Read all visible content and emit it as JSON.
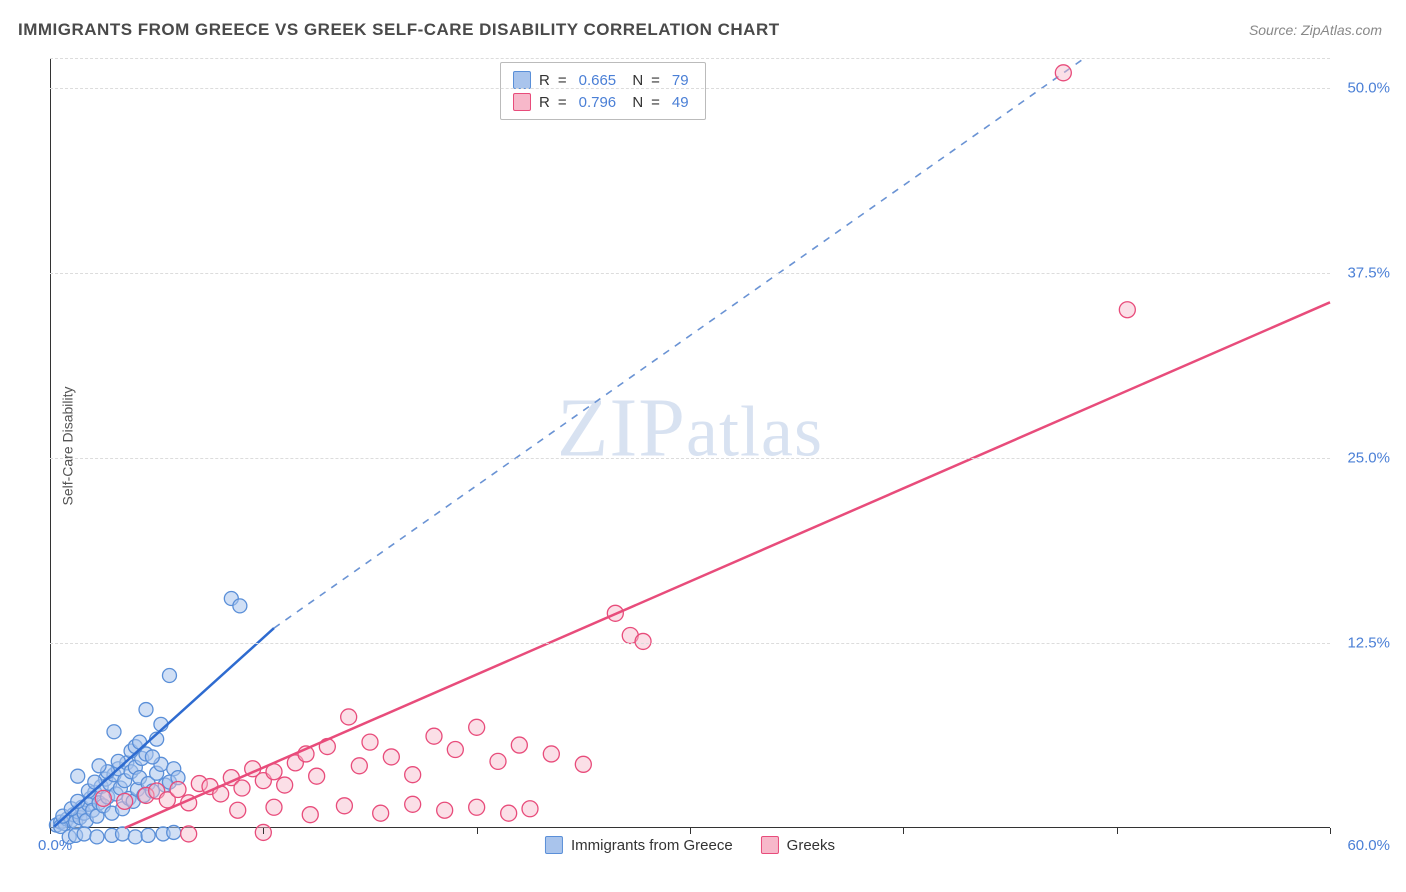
{
  "title": "IMMIGRANTS FROM GREECE VS GREEK SELF-CARE DISABILITY CORRELATION CHART",
  "source": "Source: ZipAtlas.com",
  "ylabel": "Self-Care Disability",
  "watermark": "ZIPatlas",
  "chart": {
    "type": "scatter",
    "background_color": "#ffffff",
    "grid_color": "#dcdcdc",
    "axis_color": "#333333",
    "tick_label_color": "#4a7fd6",
    "xlim": [
      0,
      60
    ],
    "ylim": [
      0,
      52
    ],
    "xtick_positions": [
      0,
      10,
      20,
      30,
      40,
      50,
      60
    ],
    "ytick_values": [
      12.5,
      25.0,
      37.5,
      50.0
    ],
    "ytick_labels": [
      "12.5%",
      "25.0%",
      "37.5%",
      "50.0%"
    ],
    "x_origin_label": "0.0%",
    "x_max_label": "60.0%",
    "series": [
      {
        "id": "immigrants",
        "label": "Immigrants from Greece",
        "R": "0.665",
        "N": "79",
        "marker_fill": "#a9c4ec",
        "marker_stroke": "#5a8fd8",
        "line_color": "#2e6bd0",
        "dashed_line_color": "#6a93d4",
        "marker_radius": 7,
        "fill_opacity": 0.55,
        "trend_solid": {
          "x1": 0.2,
          "y1": 0.1,
          "x2": 10.5,
          "y2": 13.5
        },
        "trend_dashed": {
          "x1": 10.5,
          "y1": 13.5,
          "x2": 48.5,
          "y2": 52
        },
        "points": [
          [
            0.3,
            0.2
          ],
          [
            0.5,
            0.4
          ],
          [
            0.7,
            0.3
          ],
          [
            0.8,
            0.6
          ],
          [
            1.0,
            0.5
          ],
          [
            1.1,
            0.9
          ],
          [
            1.2,
            0.4
          ],
          [
            1.3,
            1.1
          ],
          [
            1.4,
            0.7
          ],
          [
            1.5,
            1.4
          ],
          [
            1.6,
            1.0
          ],
          [
            1.7,
            0.5
          ],
          [
            1.8,
            1.6
          ],
          [
            1.9,
            2.0
          ],
          [
            2.0,
            1.2
          ],
          [
            2.1,
            2.4
          ],
          [
            2.2,
            0.8
          ],
          [
            2.3,
            1.7
          ],
          [
            2.4,
            2.8
          ],
          [
            2.5,
            1.5
          ],
          [
            2.6,
            3.3
          ],
          [
            2.7,
            2.1
          ],
          [
            2.8,
            3.0
          ],
          [
            2.9,
            1.0
          ],
          [
            3.0,
            3.6
          ],
          [
            3.1,
            2.3
          ],
          [
            3.2,
            4.0
          ],
          [
            3.3,
            2.7
          ],
          [
            3.4,
            1.3
          ],
          [
            3.5,
            3.2
          ],
          [
            3.6,
            4.4
          ],
          [
            3.7,
            2.0
          ],
          [
            3.8,
            3.8
          ],
          [
            3.9,
            1.8
          ],
          [
            4.0,
            4.1
          ],
          [
            4.1,
            2.6
          ],
          [
            4.2,
            3.4
          ],
          [
            4.3,
            4.7
          ],
          [
            4.4,
            2.2
          ],
          [
            4.5,
            5.0
          ],
          [
            4.6,
            3.0
          ],
          [
            4.8,
            2.5
          ],
          [
            5.0,
            3.7
          ],
          [
            5.2,
            4.3
          ],
          [
            5.4,
            2.9
          ],
          [
            5.6,
            3.1
          ],
          [
            5.8,
            4.0
          ],
          [
            6.0,
            3.4
          ],
          [
            0.5,
            0.1
          ],
          [
            0.9,
            -0.6
          ],
          [
            1.2,
            -0.5
          ],
          [
            1.6,
            -0.4
          ],
          [
            2.2,
            -0.6
          ],
          [
            2.9,
            -0.5
          ],
          [
            3.4,
            -0.4
          ],
          [
            4.0,
            -0.6
          ],
          [
            4.6,
            -0.5
          ],
          [
            5.3,
            -0.4
          ],
          [
            5.8,
            -0.3
          ],
          [
            0.6,
            0.8
          ],
          [
            1.0,
            1.3
          ],
          [
            1.3,
            1.8
          ],
          [
            1.8,
            2.5
          ],
          [
            2.1,
            3.1
          ],
          [
            2.7,
            3.8
          ],
          [
            3.2,
            4.5
          ],
          [
            3.0,
            6.5
          ],
          [
            3.8,
            5.2
          ],
          [
            4.0,
            5.5
          ],
          [
            1.3,
            3.5
          ],
          [
            2.3,
            4.2
          ],
          [
            4.2,
            5.8
          ],
          [
            4.8,
            4.8
          ],
          [
            5.0,
            6.0
          ],
          [
            5.2,
            7.0
          ],
          [
            5.6,
            10.3
          ],
          [
            8.5,
            15.5
          ],
          [
            8.9,
            15.0
          ],
          [
            4.5,
            8.0
          ]
        ]
      },
      {
        "id": "greeks",
        "label": "Greeks",
        "R": "0.796",
        "N": "49",
        "marker_fill": "#f7b8ca",
        "marker_stroke": "#e84c7b",
        "line_color": "#e84c7b",
        "marker_radius": 8,
        "fill_opacity": 0.45,
        "trend_solid": {
          "x1": 3.5,
          "y1": 0.0,
          "x2": 60,
          "y2": 35.5
        },
        "points": [
          [
            2.5,
            2.0
          ],
          [
            3.5,
            1.8
          ],
          [
            4.5,
            2.2
          ],
          [
            5.0,
            2.5
          ],
          [
            5.5,
            1.9
          ],
          [
            6.0,
            2.6
          ],
          [
            6.5,
            1.7
          ],
          [
            7.0,
            3.0
          ],
          [
            7.5,
            2.8
          ],
          [
            8.0,
            2.3
          ],
          [
            8.5,
            3.4
          ],
          [
            9.0,
            2.7
          ],
          [
            9.5,
            4.0
          ],
          [
            10.0,
            3.2
          ],
          [
            10.5,
            3.8
          ],
          [
            11.0,
            2.9
          ],
          [
            11.5,
            4.4
          ],
          [
            12.0,
            5.0
          ],
          [
            12.5,
            3.5
          ],
          [
            13.0,
            5.5
          ],
          [
            14.0,
            7.5
          ],
          [
            14.5,
            4.2
          ],
          [
            15.0,
            5.8
          ],
          [
            16.0,
            4.8
          ],
          [
            17.0,
            3.6
          ],
          [
            18.0,
            6.2
          ],
          [
            19.0,
            5.3
          ],
          [
            20.0,
            6.8
          ],
          [
            21.0,
            4.5
          ],
          [
            22.0,
            5.6
          ],
          [
            23.5,
            5.0
          ],
          [
            25.0,
            4.3
          ],
          [
            8.8,
            1.2
          ],
          [
            10.5,
            1.4
          ],
          [
            12.2,
            0.9
          ],
          [
            13.8,
            1.5
          ],
          [
            15.5,
            1.0
          ],
          [
            17.0,
            1.6
          ],
          [
            18.5,
            1.2
          ],
          [
            20.0,
            1.4
          ],
          [
            21.5,
            1.0
          ],
          [
            22.5,
            1.3
          ],
          [
            26.5,
            14.5
          ],
          [
            27.2,
            13.0
          ],
          [
            27.8,
            12.6
          ],
          [
            47.5,
            51.0
          ],
          [
            50.5,
            35.0
          ],
          [
            6.5,
            -0.4
          ],
          [
            10.0,
            -0.3
          ]
        ]
      }
    ]
  },
  "legend_bottom": [
    {
      "label": "Immigrants from Greece",
      "fill": "#a9c4ec",
      "stroke": "#5a8fd8"
    },
    {
      "label": "Greeks",
      "fill": "#f7b8ca",
      "stroke": "#e84c7b"
    }
  ]
}
